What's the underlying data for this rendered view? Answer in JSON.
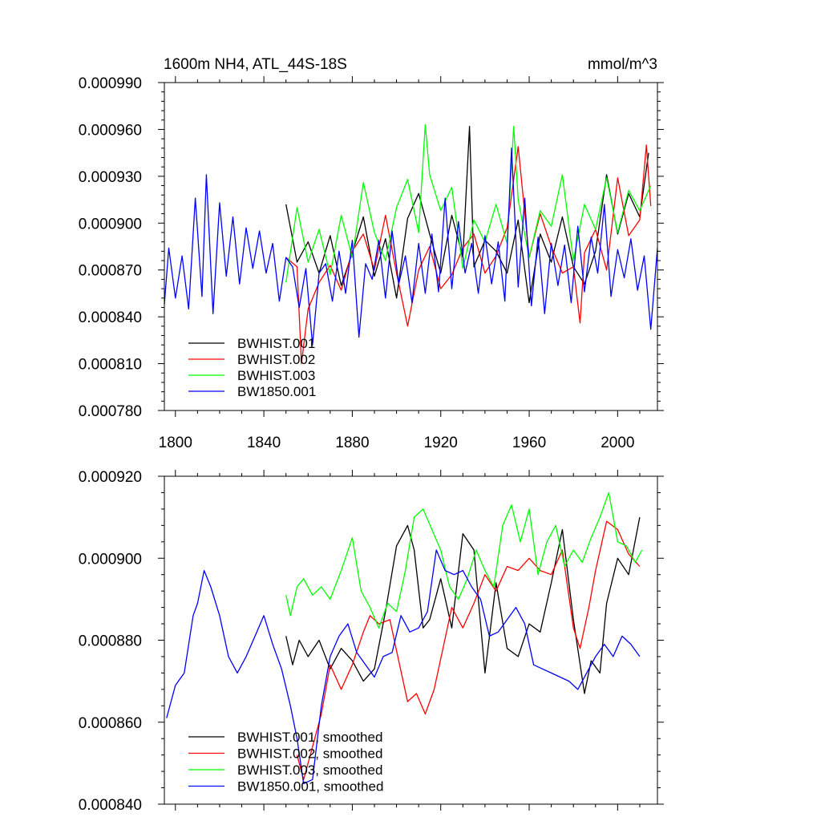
{
  "chart_data": [
    {
      "type": "line",
      "title": "1600m NH4, ATL_44S-18S",
      "units": "mmol/m^3",
      "xlim": [
        1795,
        2018
      ],
      "ylim": [
        0.00078,
        0.00099
      ],
      "x_ticks": [
        1800,
        1840,
        1880,
        1920,
        1960,
        2000
      ],
      "x_tick_labels": [
        "1800",
        "1840",
        "1880",
        "1920",
        "1960",
        "2000"
      ],
      "y_ticks": [
        0.00078,
        0.00081,
        0.00084,
        0.00087,
        0.0009,
        0.00093,
        0.00096,
        0.00099
      ],
      "y_tick_labels": [
        "0.000780",
        "0.000810",
        "0.000840",
        "0.000870",
        "0.000900",
        "0.000930",
        "0.000960",
        "0.000990"
      ],
      "legend_position": "bottom-left",
      "series": [
        {
          "name": "BWHIST.001",
          "color": "#000000",
          "x": [
            1850,
            1855,
            1860,
            1865,
            1870,
            1875,
            1880,
            1885,
            1890,
            1895,
            1900,
            1905,
            1910,
            1915,
            1920,
            1925,
            1930,
            1933,
            1935,
            1940,
            1945,
            1950,
            1955,
            1960,
            1965,
            1970,
            1975,
            1980,
            1985,
            1990,
            1995,
            2000,
            2005,
            2010,
            2014
          ],
          "y": [
            0.000912,
            0.000875,
            0.000888,
            0.000868,
            0.000892,
            0.00086,
            0.000881,
            0.000904,
            0.000866,
            0.00089,
            0.000852,
            0.000903,
            0.000919,
            0.000893,
            0.000868,
            0.000905,
            0.000878,
            0.000962,
            0.000872,
            0.000889,
            0.000882,
            0.000868,
            0.000902,
            0.000849,
            0.000893,
            0.000875,
            0.000904,
            0.000872,
            0.000861,
            0.000882,
            0.000931,
            0.000893,
            0.000919,
            0.000904,
            0.000945
          ]
        },
        {
          "name": "BWHIST.002",
          "color": "#ff0000",
          "x": [
            1850,
            1855,
            1857,
            1860,
            1865,
            1870,
            1875,
            1880,
            1885,
            1890,
            1895,
            1900,
            1905,
            1910,
            1915,
            1920,
            1925,
            1930,
            1935,
            1940,
            1945,
            1950,
            1955,
            1960,
            1965,
            1970,
            1975,
            1980,
            1983,
            1985,
            1990,
            1995,
            2000,
            2005,
            2010,
            2013,
            2015
          ],
          "y": [
            0.000878,
            0.000872,
            0.00081,
            0.000845,
            0.000862,
            0.000873,
            0.000857,
            0.000882,
            0.000893,
            0.00087,
            0.000905,
            0.000868,
            0.000834,
            0.00087,
            0.000885,
            0.000858,
            0.000867,
            0.000884,
            0.000893,
            0.000868,
            0.000879,
            0.000897,
            0.000949,
            0.000878,
            0.000906,
            0.000885,
            0.000868,
            0.000872,
            0.000836,
            0.000881,
            0.000896,
            0.00087,
            0.000929,
            0.000892,
            0.000902,
            0.00095,
            0.000911
          ]
        },
        {
          "name": "BWHIST.003",
          "color": "#00ff00",
          "x": [
            1850,
            1855,
            1860,
            1865,
            1870,
            1875,
            1880,
            1885,
            1890,
            1895,
            1900,
            1905,
            1910,
            1913,
            1915,
            1920,
            1925,
            1930,
            1935,
            1940,
            1945,
            1950,
            1953,
            1955,
            1960,
            1965,
            1970,
            1975,
            1980,
            1985,
            1990,
            1995,
            2000,
            2005,
            2010,
            2015
          ],
          "y": [
            0.000862,
            0.00091,
            0.000875,
            0.000896,
            0.000867,
            0.000905,
            0.000878,
            0.000926,
            0.000894,
            0.000876,
            0.00091,
            0.000928,
            0.000894,
            0.000963,
            0.000931,
            0.000908,
            0.000923,
            0.000871,
            0.000902,
            0.000888,
            0.000912,
            0.000887,
            0.000962,
            0.000915,
            0.000878,
            0.000908,
            0.000898,
            0.000931,
            0.000876,
            0.000912,
            0.000896,
            0.000929,
            0.000894,
            0.000921,
            0.000908,
            0.000924
          ]
        },
        {
          "name": "BW1850.001",
          "color": "#0000ff",
          "x": [
            1795,
            1797,
            1800,
            1803,
            1806,
            1809,
            1812,
            1814,
            1817,
            1820,
            1823,
            1826,
            1829,
            1832,
            1835,
            1838,
            1841,
            1844,
            1847,
            1850,
            1853,
            1856,
            1859,
            1862,
            1865,
            1868,
            1871,
            1874,
            1877,
            1880,
            1883,
            1886,
            1889,
            1892,
            1895,
            1898,
            1901,
            1904,
            1907,
            1910,
            1913,
            1916,
            1919,
            1922,
            1925,
            1928,
            1931,
            1934,
            1937,
            1940,
            1943,
            1946,
            1949,
            1952,
            1955,
            1958,
            1961,
            1964,
            1967,
            1970,
            1973,
            1976,
            1979,
            1982,
            1985,
            1988,
            1991,
            1994,
            1997,
            2000,
            2003,
            2006,
            2009,
            2012,
            2015,
            2018
          ],
          "y": [
            0.000848,
            0.000884,
            0.000852,
            0.000879,
            0.000845,
            0.000916,
            0.000853,
            0.000931,
            0.000842,
            0.000913,
            0.000866,
            0.000904,
            0.000861,
            0.000897,
            0.000871,
            0.000895,
            0.000868,
            0.000887,
            0.00085,
            0.000878,
            0.000872,
            0.000846,
            0.000871,
            0.000822,
            0.000868,
            0.000874,
            0.00085,
            0.000882,
            0.000855,
            0.000889,
            0.000827,
            0.000874,
            0.000864,
            0.000889,
            0.000852,
            0.000895,
            0.000861,
            0.000879,
            0.000849,
            0.000887,
            0.000855,
            0.000893,
            0.000856,
            0.000916,
            0.000858,
            0.000901,
            0.000868,
            0.000887,
            0.000855,
            0.000892,
            0.000861,
            0.000888,
            0.00085,
            0.000948,
            0.000859,
            0.000916,
            0.000847,
            0.000891,
            0.000842,
            0.000887,
            0.00086,
            0.000886,
            0.000849,
            0.000898,
            0.000856,
            0.000891,
            0.000868,
            0.000912,
            0.000853,
            0.000883,
            0.000865,
            0.00089,
            0.000857,
            0.000879,
            0.000832,
            0.000884
          ]
        }
      ]
    },
    {
      "type": "line",
      "xlim": [
        1795,
        2018
      ],
      "ylim": [
        0.00084,
        0.00092
      ],
      "x_ticks": [
        1800,
        1840,
        1880,
        1920,
        1960,
        2000
      ],
      "y_ticks": [
        0.00084,
        0.00086,
        0.00088,
        0.0009,
        0.00092
      ],
      "y_tick_labels": [
        "0.000840",
        "0.000860",
        "0.000880",
        "0.000900",
        "0.000920"
      ],
      "legend_position": "bottom-left",
      "series": [
        {
          "name": "BWHIST.001, smoothed",
          "color": "#000000",
          "x": [
            1850,
            1853,
            1856,
            1860,
            1865,
            1870,
            1875,
            1880,
            1885,
            1890,
            1895,
            1900,
            1905,
            1908,
            1912,
            1915,
            1920,
            1925,
            1930,
            1935,
            1940,
            1945,
            1950,
            1955,
            1960,
            1965,
            1970,
            1975,
            1980,
            1985,
            1988,
            1992,
            1995,
            2000,
            2005,
            2010
          ],
          "y": [
            0.000881,
            0.000874,
            0.00088,
            0.000876,
            0.00088,
            0.000873,
            0.000878,
            0.000875,
            0.00087,
            0.000873,
            0.000887,
            0.000903,
            0.000908,
            0.000902,
            0.000883,
            0.000885,
            0.000895,
            0.000883,
            0.000906,
            0.000902,
            0.000872,
            0.000894,
            0.000878,
            0.000876,
            0.000884,
            0.000882,
            0.000894,
            0.000907,
            0.000885,
            0.000867,
            0.000875,
            0.000872,
            0.000889,
            0.0009,
            0.000896,
            0.00091
          ]
        },
        {
          "name": "BWHIST.002, smoothed",
          "color": "#ff0000",
          "x": [
            1855,
            1858,
            1862,
            1866,
            1870,
            1875,
            1880,
            1885,
            1888,
            1892,
            1897,
            1901,
            1905,
            1909,
            1913,
            1917,
            1921,
            1925,
            1930,
            1935,
            1940,
            1945,
            1950,
            1955,
            1960,
            1965,
            1970,
            1975,
            1980,
            1983,
            1987,
            1990,
            1995,
            2000,
            2005,
            2010
          ],
          "y": [
            0.000852,
            0.000846,
            0.000854,
            0.000862,
            0.000874,
            0.000868,
            0.000874,
            0.000882,
            0.000886,
            0.000884,
            0.000885,
            0.000875,
            0.000865,
            0.000867,
            0.000862,
            0.000868,
            0.000878,
            0.000888,
            0.000883,
            0.000889,
            0.000896,
            0.000892,
            0.000898,
            0.000897,
            0.0009,
            0.000897,
            0.000896,
            0.000902,
            0.000883,
            0.000878,
            0.000888,
            0.000897,
            0.000909,
            0.000907,
            0.000901,
            0.000898
          ]
        },
        {
          "name": "BWHIST.003, smoothed",
          "color": "#00ff00",
          "x": [
            1850,
            1852,
            1855,
            1858,
            1862,
            1866,
            1870,
            1875,
            1880,
            1884,
            1888,
            1892,
            1896,
            1900,
            1904,
            1908,
            1912,
            1916,
            1920,
            1924,
            1928,
            1932,
            1936,
            1940,
            1944,
            1948,
            1952,
            1956,
            1960,
            1964,
            1968,
            1972,
            1976,
            1980,
            1984,
            1988,
            1992,
            1996,
            2000,
            2004,
            2008,
            2011
          ],
          "y": [
            0.000891,
            0.000886,
            0.000893,
            0.000895,
            0.000891,
            0.000893,
            0.00089,
            0.000897,
            0.000905,
            0.000892,
            0.000888,
            0.000883,
            0.000889,
            0.000887,
            0.000897,
            0.00091,
            0.000912,
            0.000907,
            0.000902,
            0.000893,
            0.00089,
            0.000895,
            0.000902,
            0.000897,
            0.000893,
            0.000908,
            0.000913,
            0.000904,
            0.000912,
            0.000896,
            0.000904,
            0.000908,
            0.000898,
            0.000902,
            0.000899,
            0.000905,
            0.00091,
            0.000916,
            0.000904,
            0.000903,
            0.000899,
            0.000902
          ]
        },
        {
          "name": "BW1850.001, smoothed",
          "color": "#0000ff",
          "x": [
            1796,
            1800,
            1804,
            1808,
            1810,
            1813,
            1816,
            1820,
            1824,
            1828,
            1832,
            1836,
            1840,
            1844,
            1848,
            1852,
            1855,
            1858,
            1862,
            1866,
            1870,
            1874,
            1878,
            1882,
            1886,
            1890,
            1894,
            1898,
            1902,
            1906,
            1910,
            1914,
            1918,
            1922,
            1926,
            1930,
            1934,
            1938,
            1942,
            1946,
            1950,
            1954,
            1958,
            1962,
            1966,
            1970,
            1974,
            1978,
            1982,
            1986,
            1990,
            1994,
            1998,
            2002,
            2006,
            2010
          ],
          "y": [
            0.000861,
            0.000869,
            0.000872,
            0.000886,
            0.000889,
            0.000897,
            0.000893,
            0.000886,
            0.000876,
            0.000872,
            0.000876,
            0.000881,
            0.000886,
            0.000879,
            0.000873,
            0.000864,
            0.000856,
            0.000845,
            0.000846,
            0.000864,
            0.000876,
            0.000881,
            0.000884,
            0.000877,
            0.000874,
            0.000871,
            0.000876,
            0.000877,
            0.000886,
            0.000882,
            0.000883,
            0.000887,
            0.000902,
            0.000897,
            0.000896,
            0.000897,
            0.000893,
            0.00089,
            0.000881,
            0.000882,
            0.000885,
            0.000888,
            0.000884,
            0.000874,
            0.000873,
            0.000872,
            0.000871,
            0.00087,
            0.000868,
            0.000872,
            0.000876,
            0.000879,
            0.000876,
            0.000881,
            0.000879,
            0.000876
          ]
        }
      ]
    }
  ]
}
